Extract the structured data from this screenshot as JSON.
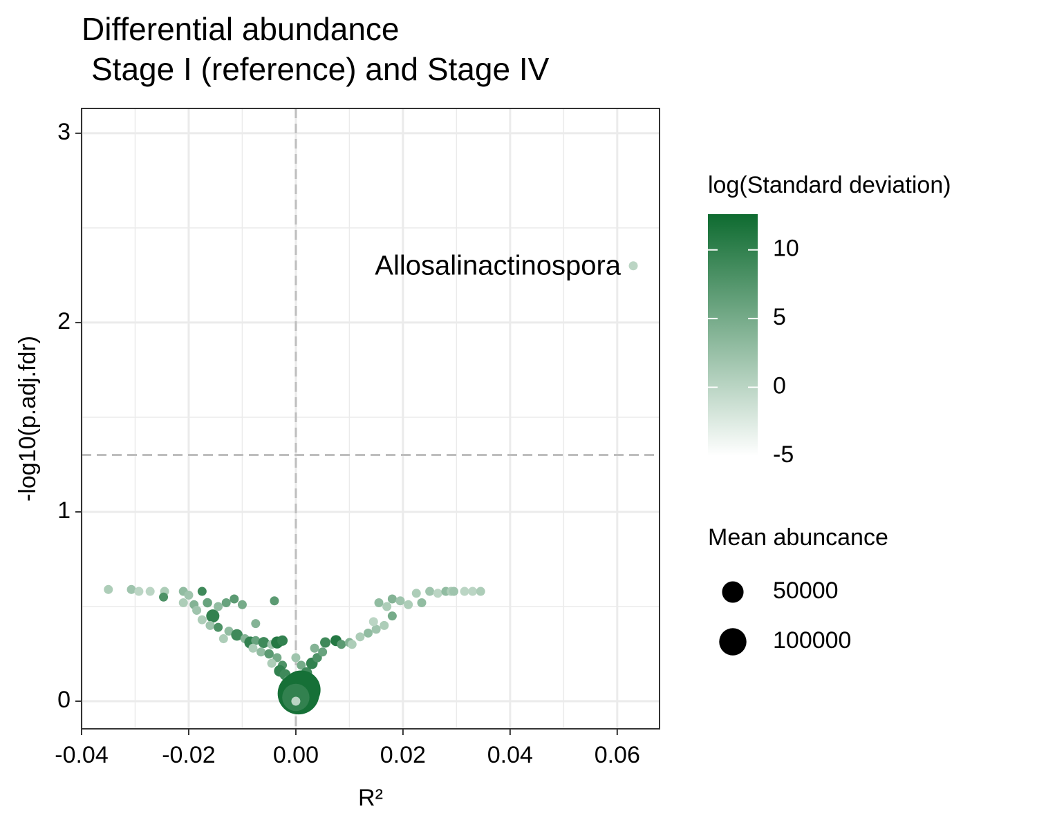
{
  "chart_data": {
    "type": "scatter",
    "title": [
      "Differential abundance",
      "Stage I (reference) and Stage IV"
    ],
    "xlabel": "R²",
    "ylabel": "-log10(p.adj.fdr)",
    "annotation": "Allosalinactinospora",
    "xlim": [
      -0.04,
      0.0679
    ],
    "ylim": [
      -0.146,
      3.131
    ],
    "xticks": [
      -0.04,
      -0.02,
      {
        "value": 0,
        "label": "0.00"
      },
      0.02,
      0.04,
      0.06
    ],
    "yticks": [
      0,
      1,
      2,
      3
    ],
    "minor_xticks": [
      -0.03,
      -0.01,
      0.01,
      0.03,
      0.05
    ],
    "minor_yticks": [
      0.5,
      1.5,
      2.5
    ],
    "hlines": [
      1.301
    ],
    "vlines": [
      0
    ],
    "grid": true,
    "x": [
      -0.035,
      -0.0307,
      -0.0293,
      -0.0272,
      -0.0245,
      -0.0247,
      -0.021,
      -0.02,
      -0.0175,
      -0.021,
      -0.019,
      -0.0165,
      -0.0155,
      -0.0185,
      -0.0145,
      -0.013,
      -0.0115,
      -0.01,
      -0.0175,
      -0.016,
      -0.0145,
      -0.0125,
      -0.011,
      -0.0135,
      -0.0095,
      -0.0085,
      -0.0075,
      -0.006,
      -0.0045,
      -0.0035,
      -0.0025,
      -0.004,
      -0.0075,
      -0.008,
      -0.0065,
      -0.005,
      -0.0035,
      -0.0045,
      -0.0025,
      -0.003,
      -0.002,
      -0.0015,
      -0.001,
      -0.0005,
      0,
      0.001,
      0.002,
      0.003,
      0.004,
      0.005,
      0.0035,
      0.0055,
      0.0075,
      0.0085,
      0.01,
      0.012,
      0.0135,
      0.0105,
      0.015,
      0.0165,
      0.0145,
      0.018,
      0.0155,
      0.017,
      0.018,
      0.0195,
      0.021,
      0.0235,
      0.0225,
      0.025,
      0.0265,
      0.028,
      0.029,
      0.0295,
      0.0315,
      0.033,
      0.0345,
      0.0005,
      0.001,
      0,
      0,
      0.063
    ],
    "values": [
      0.59,
      0.59,
      0.58,
      0.58,
      0.58,
      0.55,
      0.58,
      0.56,
      0.58,
      0.52,
      0.51,
      0.52,
      0.45,
      0.48,
      0.5,
      0.52,
      0.54,
      0.51,
      0.43,
      0.4,
      0.39,
      0.37,
      0.35,
      0.33,
      0.33,
      0.31,
      0.32,
      0.31,
      0.3,
      0.31,
      0.32,
      0.53,
      0.41,
      0.28,
      0.26,
      0.25,
      0.23,
      0.2,
      0.19,
      0.16,
      0.14,
      0.11,
      0.09,
      0.07,
      0.23,
      0.19,
      0.15,
      0.2,
      0.23,
      0.26,
      0.28,
      0.31,
      0.32,
      0.3,
      0.31,
      0.34,
      0.36,
      0.3,
      0.38,
      0.4,
      0.42,
      0.45,
      0.52,
      0.5,
      0.54,
      0.53,
      0.51,
      0.52,
      0.57,
      0.58,
      0.57,
      0.58,
      0.58,
      0.58,
      0.58,
      0.58,
      0.58,
      0.04,
      0.06,
      0.02,
      0.0,
      2.3
    ],
    "color_values": [
      1,
      2,
      0,
      0,
      1,
      8,
      3,
      2,
      9,
      1,
      4,
      6,
      10,
      2,
      3,
      6,
      7,
      5,
      1,
      2,
      8,
      3,
      9,
      1,
      4,
      10,
      6,
      9,
      2,
      11,
      10,
      7,
      4,
      1,
      3,
      7,
      5,
      1,
      8,
      10,
      9,
      6,
      3,
      11,
      2,
      5,
      9,
      10,
      8,
      6,
      4,
      9,
      11,
      7,
      4,
      1,
      3,
      1,
      2,
      1,
      0,
      5,
      3,
      1,
      4,
      2,
      1,
      3,
      1,
      2,
      0,
      3,
      1,
      2,
      0,
      0,
      1,
      12,
      12,
      10,
      0,
      0
    ],
    "sizes": [
      500,
      500,
      500,
      500,
      500,
      500,
      500,
      500,
      500,
      500,
      500,
      800,
      8000,
      500,
      500,
      500,
      500,
      500,
      500,
      500,
      500,
      500,
      4000,
      500,
      500,
      5000,
      500,
      3000,
      500,
      5000,
      2000,
      500,
      500,
      500,
      500,
      800,
      500,
      500,
      500,
      4000,
      3000,
      500,
      500,
      2000,
      500,
      500,
      3000,
      4000,
      800,
      500,
      500,
      2000,
      3000,
      500,
      500,
      500,
      500,
      500,
      500,
      500,
      500,
      500,
      500,
      500,
      500,
      500,
      500,
      500,
      500,
      500,
      500,
      500,
      500,
      500,
      500,
      500,
      500,
      300000,
      250000,
      100000,
      500,
      500
    ],
    "color_legend": {
      "title": "log(Standard deviation)",
      "lim": [
        -5,
        12.6
      ],
      "ticks": [
        -5,
        0,
        5,
        10
      ],
      "low": "#ffffff",
      "high": "#0e6b30"
    },
    "size_legend": {
      "title": "Mean abuncance",
      "values": [
        50000,
        100000
      ],
      "color": "#000000"
    }
  }
}
